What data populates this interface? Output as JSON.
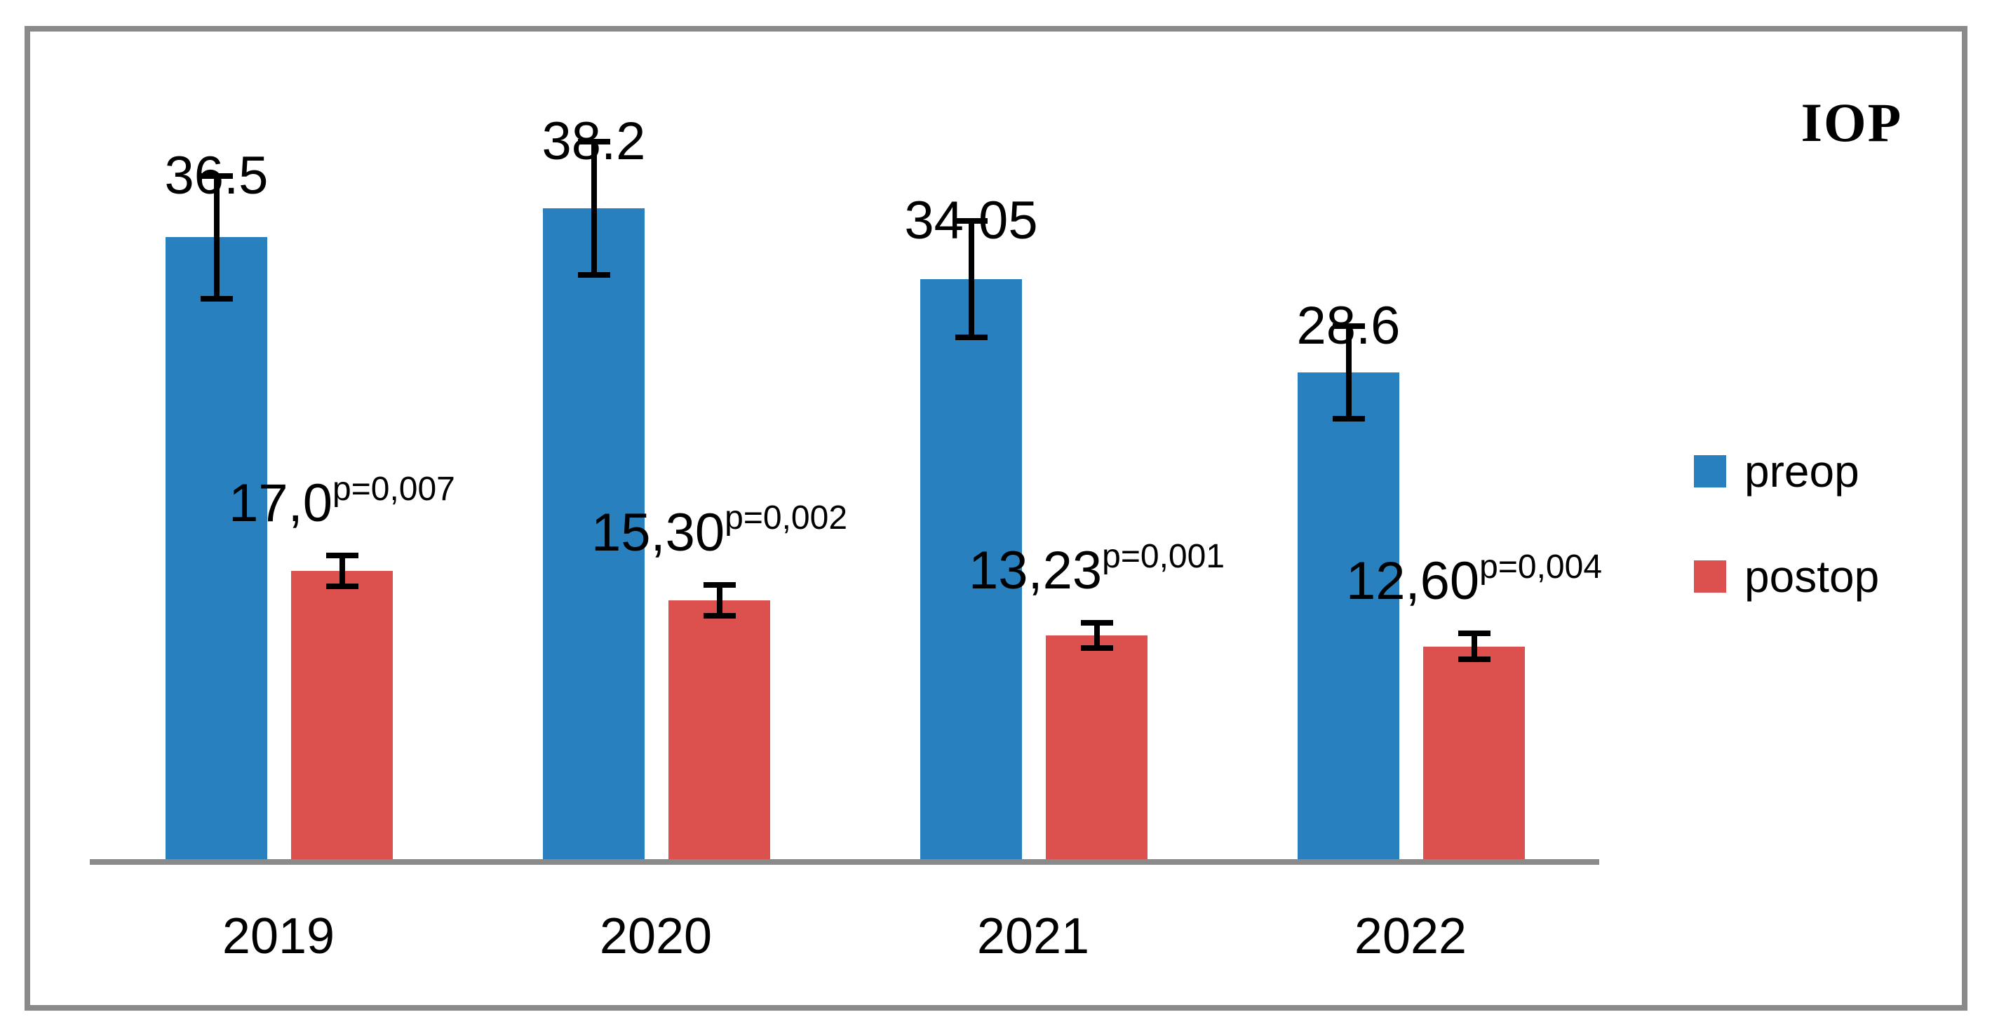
{
  "title": "IOP",
  "legend": {
    "items": [
      {
        "label": "preop",
        "color": "#2980BE"
      },
      {
        "label": "postop",
        "color": "#DC514E"
      }
    ]
  },
  "chart_data": {
    "type": "bar",
    "categories": [
      "2019",
      "2020",
      "2021",
      "2022"
    ],
    "series": [
      {
        "name": "preop",
        "color": "#2980BE",
        "values": [
          36.5,
          38.2,
          34.05,
          28.6
        ],
        "labels": [
          "36.5",
          "38.2",
          "34.05",
          "28.6"
        ],
        "errors": [
          3.6,
          3.9,
          3.4,
          2.7
        ],
        "p_labels": [
          "",
          "",
          "",
          ""
        ]
      },
      {
        "name": "postop",
        "color": "#DC514E",
        "values": [
          17.0,
          15.3,
          13.23,
          12.6
        ],
        "labels": [
          "17,0",
          "15,30",
          "13,23",
          "12,60"
        ],
        "errors": [
          0.9,
          0.9,
          0.75,
          0.75
        ],
        "p_labels": [
          "p=0,007",
          "p=0,002",
          "p=0,001",
          "p=0,004"
        ]
      }
    ],
    "title": "IOP",
    "xlabel": "",
    "ylabel": "",
    "ylim": [
      0,
      45
    ],
    "grid": false,
    "y_axis_visible": false,
    "legend_position": "right",
    "error_bars": true,
    "axis_color": "#8A8A8A",
    "frame_color": "#8A8A8A"
  }
}
